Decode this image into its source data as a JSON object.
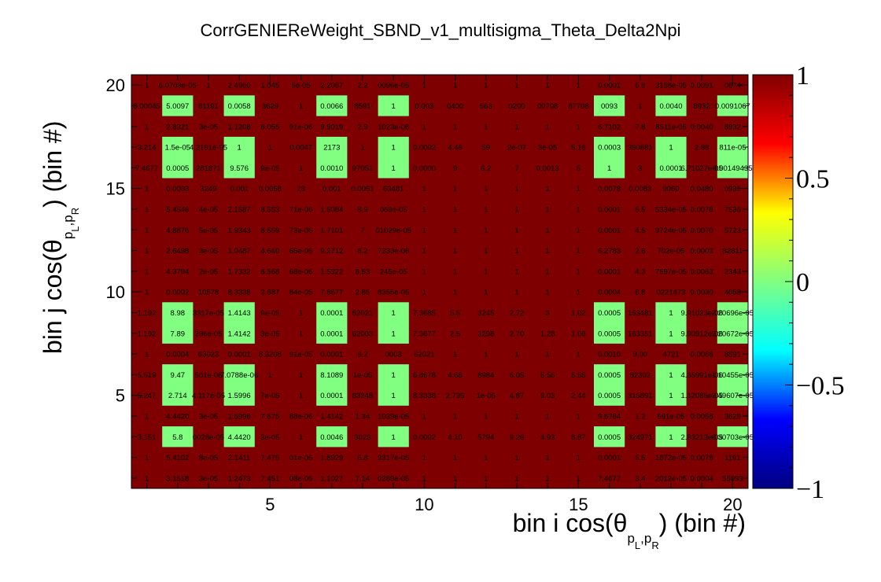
{
  "chart_data": {
    "type": "heatmap",
    "title": "CorrGENIEReWeight_SBND_v1_multisigma_Theta_Delta2Npi",
    "xlabel": "bin i cos(θ p→L,p→R) (bin #)",
    "ylabel": "bin j cos(θ p→L,p→R) (bin #)",
    "xlabel_parts": {
      "prefix": "bin i cos(θ",
      "sub1": "p",
      "sub1_index": "L",
      "sep": ",",
      "sub2": "p",
      "sub2_index": "R",
      "suffix": ") (bin #)"
    },
    "ylabel_parts": {
      "prefix": "bin j cos(θ",
      "sub1": "p",
      "sub1_index": "L",
      "sep": ",",
      "sub2": "p",
      "sub2_index": "R",
      "suffix": ") (bin #)"
    },
    "xlim": [
      0.5,
      20.5
    ],
    "ylim": [
      0.5,
      20.5
    ],
    "x_ticks": [
      "5",
      "10",
      "15",
      "20"
    ],
    "y_ticks": [
      "5",
      "10",
      "15",
      "20"
    ],
    "zlim": [
      -1,
      1
    ],
    "z_ticks": [
      "1",
      "0.5",
      "0",
      "−0.5",
      "−1"
    ],
    "colormap": [
      "#000080",
      "#0000ff",
      "#00ffff",
      "#80ff80",
      "#ffff00",
      "#ff0000",
      "#800000"
    ],
    "value_colors": {
      "one": "#7f0000",
      "near_zero": "#80ff80"
    },
    "rows": [
      {
        "y": 20,
        "cells": [
          "1",
          "6.0703e-05",
          "1",
          "2.4960",
          "1.045",
          "5e-05",
          "2.2067",
          "2.2",
          "0096e-05",
          "1",
          "1",
          "1",
          "1",
          "1",
          "1",
          "0.0001",
          "6.9",
          "3158e-05",
          "0.0091",
          "0674"
        ]
      },
      {
        "y": 19,
        "cells": [
          "0.00045",
          "5.0097",
          "81191",
          "0.0058",
          "3629",
          "1",
          "0.0066",
          "8591",
          "1",
          "0.003",
          "0400",
          "563",
          "0200",
          "00708",
          "87708",
          "0093",
          "1",
          "0.0040",
          "8932",
          "0.0091067"
        ]
      },
      {
        "y": 18,
        "cells": [
          "1",
          "2.8321",
          "3e-05",
          "1.1208",
          "6.055",
          "91e-06",
          "9.9019",
          "2.9",
          "1023e-06",
          "1",
          "1",
          "1",
          "1",
          "1",
          "1",
          "6.7102",
          "7.8",
          "8511e-05",
          "0.0040",
          "8932"
        ]
      },
      {
        "y": 17,
        "cells": [
          "3.214",
          "1.5e-05",
          "4.2191e-05",
          "1",
          "1",
          "0.0047",
          "2173",
          "1",
          "1",
          "0.0002",
          "4.46",
          "59",
          "2e-07",
          "3e-05",
          "5.16",
          "0.0003",
          "390681",
          "1",
          "2.88",
          "811e-05"
        ]
      },
      {
        "y": 16,
        "cells": [
          "7.4677",
          "0.0005",
          "281871",
          "9.576",
          "9e-05",
          "1",
          "0.0010",
          "97051",
          "1",
          "0.0000",
          "9",
          "6.2",
          "7",
          "0.0013",
          "5",
          "1",
          "3",
          "0.0001",
          "6.71027e-05",
          "0.00149435"
        ]
      },
      {
        "y": 15,
        "cells": [
          "1",
          "0.0003",
          "3249",
          "0.001",
          "0.0058",
          "23",
          "0.001",
          "0.0051",
          "63481",
          "1",
          "1",
          "1",
          "1",
          "1",
          "1",
          "0.0078",
          "0.0083",
          "9060",
          "0.0480",
          "0931"
        ]
      },
      {
        "y": 14,
        "cells": [
          "1",
          "5.4546",
          "4e-05",
          "2.1587",
          "8.553",
          "71e-06",
          "1.5084",
          "8.9",
          "069e-05",
          "1",
          "1",
          "1",
          "1",
          "1",
          "1",
          "0.0001",
          "5.5",
          "5334e-05",
          "0.0078",
          "7536"
        ]
      },
      {
        "y": 13,
        "cells": [
          "1",
          "4.8876",
          "5e-05",
          "1.9343",
          "8.559",
          "73e-06",
          "1.7101",
          "7",
          "01029e-05",
          "1",
          "1",
          "1",
          "1",
          "1",
          "1",
          "0.0001",
          "4.5",
          "9724e-05",
          "0.0070",
          "5723"
        ]
      },
      {
        "y": 12,
        "cells": [
          "1",
          "2.6498",
          "3e-05",
          "1.0487",
          "4.640",
          "65e-06",
          "9.2712",
          "8.2",
          "7233e-06",
          "1",
          "1",
          "1",
          "1",
          "1",
          "1",
          "6.2783",
          "2.6",
          "702e-05",
          "0.0003",
          "82811"
        ]
      },
      {
        "y": 11,
        "cells": [
          "1",
          "4.3794",
          "2e-05",
          "1.7332",
          "6.568",
          "68e-06",
          "1.5322",
          "8.53",
          "245e-05",
          "1",
          "1",
          "1",
          "1",
          "1",
          "1",
          "0.0001",
          "4.3",
          "7597e-05",
          "0.0063",
          "2343"
        ]
      },
      {
        "y": 10,
        "cells": [
          "1",
          "0.0002",
          "10578",
          "8.3338",
          "2.687",
          "84e-05",
          "7.8677",
          "2.86",
          "8355e-05",
          "1",
          "1",
          "1",
          "1",
          "1",
          "1",
          "0.0004",
          "6.8",
          "0221473",
          "0.0030",
          "4053"
        ]
      },
      {
        "y": 9,
        "cells": [
          "1.192",
          "8.98",
          "3317e-05",
          "1.4143",
          "9e-05",
          "1",
          "0.0001",
          "62021",
          "1",
          "7.3685",
          "5.5",
          "3245",
          "2.72",
          "3",
          "1.02",
          "0.0005",
          "163481",
          "1",
          "9.91023e-06",
          "2.20696e-05"
        ]
      },
      {
        "y": 8,
        "cells": [
          "1.192",
          "7.89",
          "296e-05",
          "1.4142",
          "3e-05",
          "1",
          "0.0001",
          "62003",
          "1",
          "7.3677",
          "2.5",
          "3298",
          "2.70",
          "1.28",
          "1.06",
          "0.0005",
          "163351",
          "1",
          "9.90912e-06",
          "2.20672e-05"
        ]
      },
      {
        "y": 7,
        "cells": [
          "1",
          "0.0004",
          "63023",
          "0.0001",
          "8.3208",
          "91e-05",
          "0.0001",
          "6.2",
          "0003",
          "62021",
          "1",
          "1",
          "1",
          "1",
          "1",
          "0.0010",
          "9.00",
          "4721",
          "0.0066",
          "8591"
        ]
      },
      {
        "y": 6,
        "cells": [
          "5.519",
          "9.47",
          "501e-06",
          "7.0788e-06",
          "1",
          "1",
          "8.1089",
          "1e-05",
          "1",
          "6.8678",
          "4.66",
          "8984",
          "6.05",
          "5.56",
          "5.55",
          "0.0005",
          "82302",
          "1",
          "4.35991e-06",
          "1.10455e-05"
        ]
      },
      {
        "y": 5,
        "cells": [
          "5.247",
          "2.714",
          "4.117e-05",
          "1.5996",
          "7e-05",
          "1",
          "0.0001",
          "83248",
          "1",
          "8.3338",
          "2.735",
          "1e-05",
          "4.87",
          "9.03",
          "2.44",
          "0.0005",
          "315891",
          "1",
          "1.12085e-05",
          "2.49607e-05"
        ]
      },
      {
        "y": 4,
        "cells": [
          "1",
          "4.4420",
          "3e-05",
          "1.5996",
          "7.675",
          "88e-06",
          "1.4142",
          "1.34",
          "1039e-05",
          "1",
          "1",
          "1",
          "1",
          "1",
          "1",
          "9.5764",
          "1.2",
          "591e-05",
          "0.0058",
          "3629"
        ]
      },
      {
        "y": 3,
        "cells": [
          "3.151",
          "5.8",
          "0028e-05",
          "4.4420",
          "3e-05",
          "1",
          "0.0046",
          "3023",
          "1",
          "0.0002",
          "4.10",
          "5794",
          "9.26",
          "4.93",
          "8.87",
          "0.0005",
          "324971",
          "1",
          "2.83213e-05",
          "6.30703e-05"
        ]
      },
      {
        "y": 2,
        "cells": [
          "1",
          "5.4102",
          "8e-05",
          "2.1411",
          "7.475",
          "01e-06",
          "1.8929",
          "6.8",
          "9317e-05",
          "1",
          "1",
          "1",
          "1",
          "1",
          "1",
          "0.0001",
          "5.5",
          "1872e-05",
          "0.0078",
          "1191"
        ]
      },
      {
        "y": 1,
        "cells": [
          "1",
          "3.1518",
          "3e-05",
          "1.2473",
          "7.451",
          "08e-06",
          "1.1027",
          "7.14",
          "0289e-05",
          "1",
          "1",
          "1",
          "1",
          "1",
          "1",
          "7.4677",
          "3.4",
          "2012e-05",
          "0.0004",
          "55093"
        ]
      }
    ],
    "red_columns": [
      1,
      3,
      5,
      6,
      8,
      10,
      11,
      12,
      13,
      14,
      15,
      17,
      19
    ],
    "red_rows": [
      20,
      18,
      15,
      14,
      13,
      12,
      11,
      10,
      7,
      4,
      2,
      1
    ],
    "cell_labels_visible": true
  }
}
